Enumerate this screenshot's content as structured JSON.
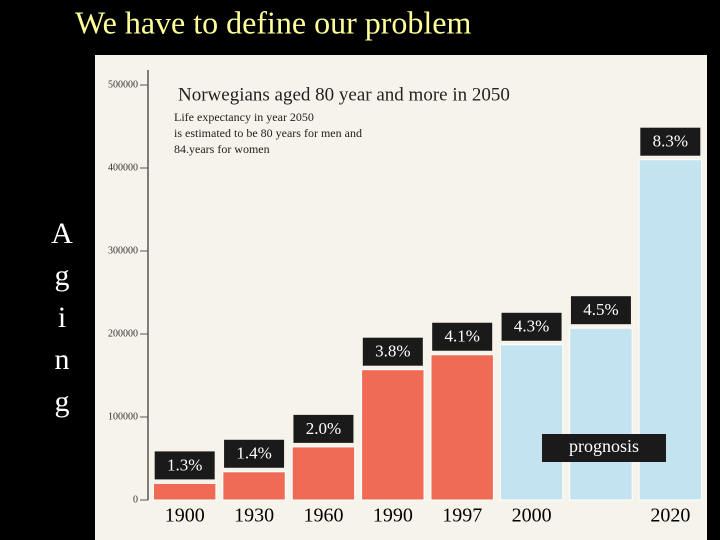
{
  "slide": {
    "title": "We have to define our problem",
    "side_letters": [
      "A",
      "g",
      "i",
      "n",
      "g"
    ]
  },
  "chart_data": {
    "type": "bar",
    "title": "Norwegians aged 80 year and more in 2050",
    "subtitle_lines": [
      "Life expectancy in year 2050",
      "is estimated to be 80 years for men and",
      "84.years for women"
    ],
    "categories": [
      "1900",
      "1930",
      "1960",
      "1990",
      "1997",
      "2000",
      null,
      "2020"
    ],
    "values": [
      20000,
      34000,
      64000,
      157000,
      175000,
      187000,
      207000,
      410000
    ],
    "bar_labels": [
      "1.3%",
      "1.4%",
      "2.0%",
      "3.8%",
      "4.1%",
      "4.3%",
      "4.5%",
      "8.3%"
    ],
    "colors": [
      "#ef6b55",
      "#ef6b55",
      "#ef6b55",
      "#ef6b55",
      "#ef6b55",
      "#c4e3f0",
      "#c4e3f0",
      "#c4e3f0"
    ],
    "annotation": "prognosis",
    "ylim": [
      0,
      500000
    ],
    "yticks": [
      0,
      100000,
      200000,
      300000,
      400000,
      500000
    ]
  }
}
